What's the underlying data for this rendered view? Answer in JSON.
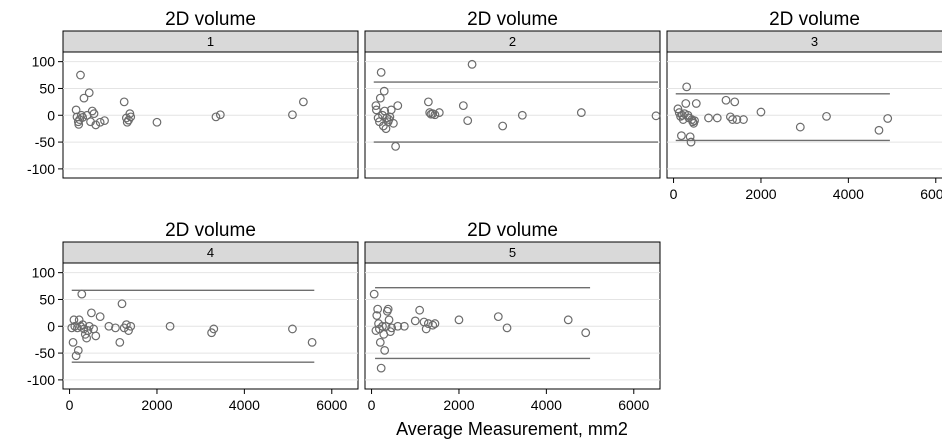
{
  "chart_data": {
    "type": "scatter",
    "layout": "small-multiples",
    "x_label": "Average Measurement, mm2",
    "x_ticks": [
      0,
      2000,
      4000,
      6000
    ],
    "y_ticks": [
      100,
      50,
      0,
      -50,
      -100
    ],
    "xlim": [
      -150,
      6600
    ],
    "ylim": [
      -117,
      118
    ],
    "grid": "horizontal",
    "colors": {
      "marker": "#6b6b6b",
      "line": "#6e6e6e",
      "strip": "#d9d9d9",
      "grid": "#e4e4e4"
    },
    "panels": [
      {
        "title": "2D volume",
        "strip": "1",
        "limits": [],
        "points": [
          [
            150,
            10
          ],
          [
            170,
            -3
          ],
          [
            200,
            -12
          ],
          [
            210,
            -17
          ],
          [
            230,
            -8
          ],
          [
            250,
            75
          ],
          [
            270,
            0
          ],
          [
            300,
            -4
          ],
          [
            330,
            32
          ],
          [
            400,
            0
          ],
          [
            450,
            42
          ],
          [
            480,
            -12
          ],
          [
            520,
            8
          ],
          [
            560,
            3
          ],
          [
            600,
            -18
          ],
          [
            700,
            -13
          ],
          [
            800,
            -10
          ],
          [
            1250,
            25
          ],
          [
            1300,
            -5
          ],
          [
            1320,
            -13
          ],
          [
            1350,
            -9
          ],
          [
            1380,
            3
          ],
          [
            1400,
            -3
          ],
          [
            2000,
            -13
          ],
          [
            3350,
            -3
          ],
          [
            3450,
            1
          ],
          [
            5100,
            1
          ],
          [
            5350,
            25
          ]
        ]
      },
      {
        "title": "2D volume",
        "strip": "2",
        "limits": [
          {
            "y": 62,
            "x0": 50,
            "x1": 6600
          },
          {
            "y": -50,
            "x0": 50,
            "x1": 6600
          }
        ],
        "points": [
          [
            100,
            18
          ],
          [
            110,
            10
          ],
          [
            150,
            -5
          ],
          [
            180,
            -12
          ],
          [
            200,
            32
          ],
          [
            220,
            80
          ],
          [
            250,
            0
          ],
          [
            270,
            -20
          ],
          [
            290,
            45
          ],
          [
            300,
            8
          ],
          [
            330,
            -25
          ],
          [
            350,
            -5
          ],
          [
            380,
            -12
          ],
          [
            400,
            -8
          ],
          [
            420,
            -3
          ],
          [
            450,
            10
          ],
          [
            500,
            -15
          ],
          [
            550,
            -58
          ],
          [
            600,
            18
          ],
          [
            1300,
            25
          ],
          [
            1330,
            5
          ],
          [
            1360,
            2
          ],
          [
            1400,
            3
          ],
          [
            1450,
            1
          ],
          [
            1550,
            5
          ],
          [
            2100,
            18
          ],
          [
            2200,
            -10
          ],
          [
            2300,
            95
          ],
          [
            3000,
            -20
          ],
          [
            3450,
            0
          ],
          [
            4800,
            5
          ],
          [
            6600,
            -1
          ]
        ]
      },
      {
        "title": "2D volume",
        "strip": "3",
        "limits": [
          {
            "y": 40,
            "x0": 50,
            "x1": 4950
          },
          {
            "y": -47,
            "x0": 50,
            "x1": 4950
          }
        ],
        "points": [
          [
            100,
            12
          ],
          [
            130,
            5
          ],
          [
            160,
            -2
          ],
          [
            180,
            -38
          ],
          [
            200,
            0
          ],
          [
            220,
            -8
          ],
          [
            250,
            3
          ],
          [
            280,
            22
          ],
          [
            300,
            53
          ],
          [
            330,
            0
          ],
          [
            350,
            -5
          ],
          [
            380,
            -40
          ],
          [
            400,
            -50
          ],
          [
            420,
            -8
          ],
          [
            440,
            -12
          ],
          [
            460,
            -15
          ],
          [
            480,
            -10
          ],
          [
            520,
            22
          ],
          [
            800,
            -5
          ],
          [
            1000,
            -5
          ],
          [
            1200,
            28
          ],
          [
            1300,
            -3
          ],
          [
            1350,
            -8
          ],
          [
            1400,
            25
          ],
          [
            1450,
            -8
          ],
          [
            1600,
            -8
          ],
          [
            2000,
            6
          ],
          [
            2900,
            -22
          ],
          [
            3500,
            -2
          ],
          [
            4700,
            -28
          ],
          [
            4900,
            -6
          ]
        ]
      },
      {
        "title": "2D volume",
        "strip": "4",
        "limits": [
          {
            "y": 67,
            "x0": 50,
            "x1": 5600
          },
          {
            "y": -67,
            "x0": 50,
            "x1": 5600
          }
        ],
        "points": [
          [
            50,
            -3
          ],
          [
            80,
            -30
          ],
          [
            100,
            12
          ],
          [
            120,
            0
          ],
          [
            150,
            -55
          ],
          [
            180,
            -3
          ],
          [
            200,
            -45
          ],
          [
            220,
            12
          ],
          [
            250,
            0
          ],
          [
            280,
            60
          ],
          [
            300,
            3
          ],
          [
            330,
            -5
          ],
          [
            360,
            -15
          ],
          [
            390,
            -22
          ],
          [
            420,
            -8
          ],
          [
            450,
            0
          ],
          [
            500,
            25
          ],
          [
            550,
            -5
          ],
          [
            600,
            -18
          ],
          [
            700,
            18
          ],
          [
            900,
            0
          ],
          [
            1050,
            -3
          ],
          [
            1150,
            -30
          ],
          [
            1200,
            42
          ],
          [
            1250,
            -3
          ],
          [
            1300,
            3
          ],
          [
            1350,
            -8
          ],
          [
            1400,
            0
          ],
          [
            2300,
            0
          ],
          [
            3250,
            -12
          ],
          [
            3300,
            -5
          ],
          [
            5100,
            -5
          ],
          [
            5550,
            -30
          ]
        ]
      },
      {
        "title": "2D volume",
        "strip": "5",
        "limits": [
          {
            "y": 72,
            "x0": 80,
            "x1": 5000
          },
          {
            "y": -60,
            "x0": 80,
            "x1": 5000
          }
        ],
        "points": [
          [
            60,
            60
          ],
          [
            100,
            -8
          ],
          [
            120,
            20
          ],
          [
            140,
            32
          ],
          [
            160,
            5
          ],
          [
            180,
            -5
          ],
          [
            200,
            -30
          ],
          [
            220,
            -78
          ],
          [
            250,
            0
          ],
          [
            280,
            -15
          ],
          [
            300,
            -45
          ],
          [
            330,
            0
          ],
          [
            360,
            28
          ],
          [
            380,
            32
          ],
          [
            400,
            12
          ],
          [
            430,
            -10
          ],
          [
            460,
            -3
          ],
          [
            600,
            0
          ],
          [
            750,
            0
          ],
          [
            1000,
            10
          ],
          [
            1100,
            30
          ],
          [
            1200,
            8
          ],
          [
            1250,
            -5
          ],
          [
            1300,
            5
          ],
          [
            1400,
            2
          ],
          [
            1450,
            5
          ],
          [
            2000,
            12
          ],
          [
            2900,
            18
          ],
          [
            3100,
            -3
          ],
          [
            4500,
            12
          ],
          [
            4900,
            -12
          ]
        ]
      }
    ]
  }
}
